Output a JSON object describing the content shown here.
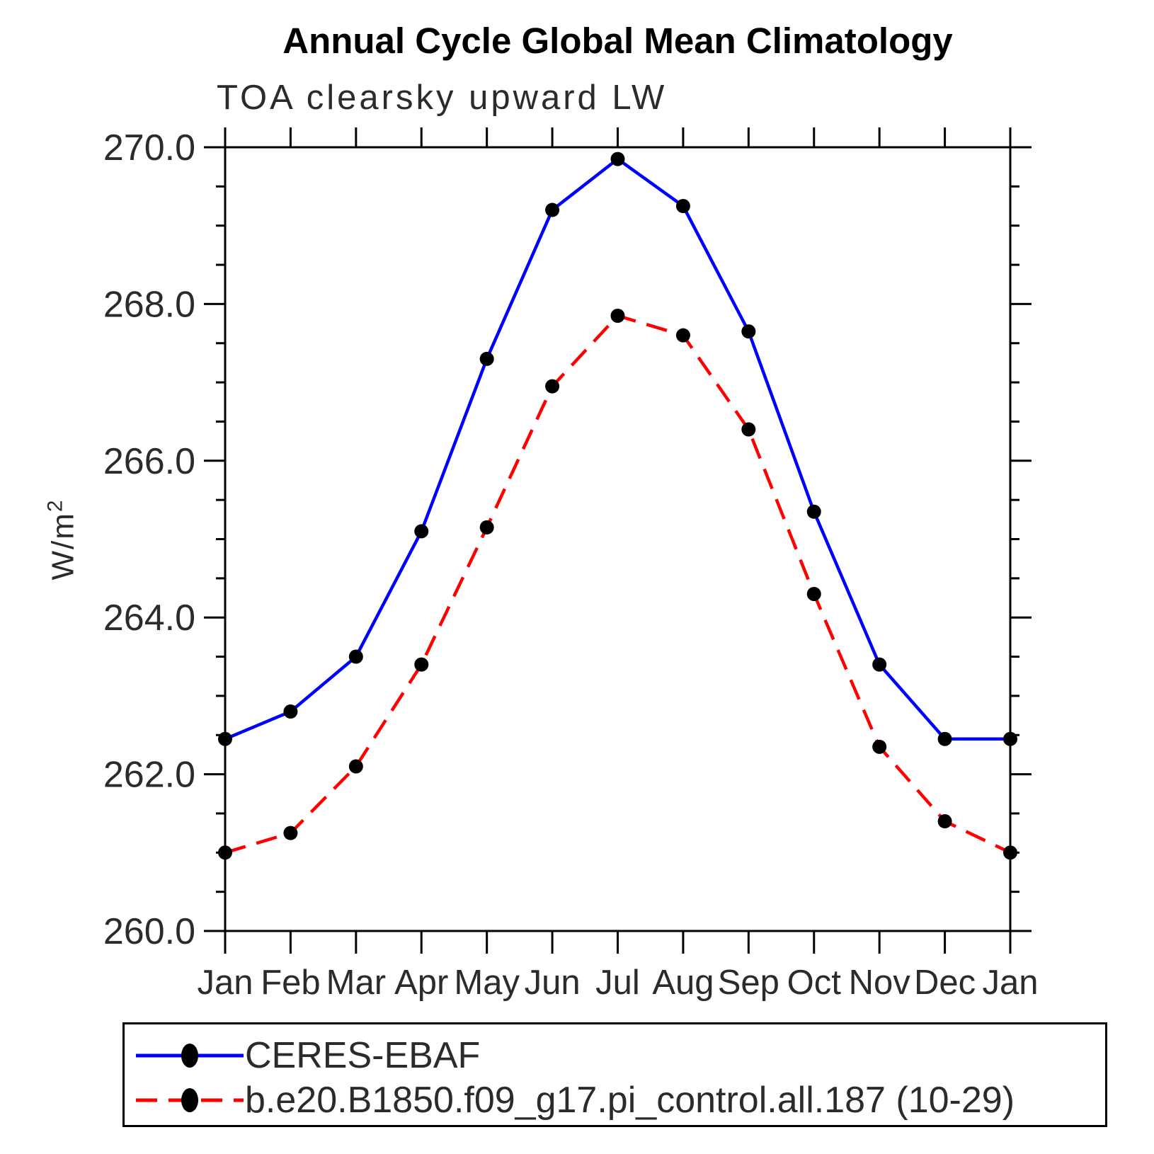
{
  "chart_data": {
    "type": "line",
    "title": "Annual Cycle Global Mean Climatology",
    "subtitle": "TOA clearsky upward LW",
    "xlabel": "",
    "ylabel": "W/m²",
    "ylabel_base": "W/m",
    "ylabel_sup": "2",
    "x_tick_labels": [
      "Jan",
      "Feb",
      "Mar",
      "Apr",
      "May",
      "Jun",
      "Jul",
      "Aug",
      "Sep",
      "Oct",
      "Nov",
      "Dec",
      "Jan"
    ],
    "y_ticks": [
      "260.0",
      "262.0",
      "264.0",
      "266.0",
      "268.0",
      "270.0"
    ],
    "ylim": [
      260.0,
      270.0
    ],
    "y_minor_step": 0.5,
    "grid": false,
    "legend_position": "bottom-left-box",
    "frame_color": "#000000",
    "marker": {
      "shape": "filled-circle",
      "color": "#000000"
    },
    "series": [
      {
        "name": "CERES-EBAF",
        "color": "#0000ff",
        "line_style": "solid",
        "values": [
          262.45,
          262.8,
          263.5,
          265.1,
          267.3,
          269.2,
          269.85,
          269.25,
          267.65,
          265.35,
          263.4,
          262.45,
          262.45
        ]
      },
      {
        "name": "b.e20.B1850.f09_g17.pi_control.all.187 (10-29)",
        "color": "#ff0000",
        "line_style": "dashed",
        "values": [
          261.0,
          261.25,
          262.1,
          263.4,
          265.15,
          266.95,
          267.85,
          267.6,
          266.4,
          264.3,
          262.35,
          261.4,
          261.0
        ]
      }
    ]
  }
}
